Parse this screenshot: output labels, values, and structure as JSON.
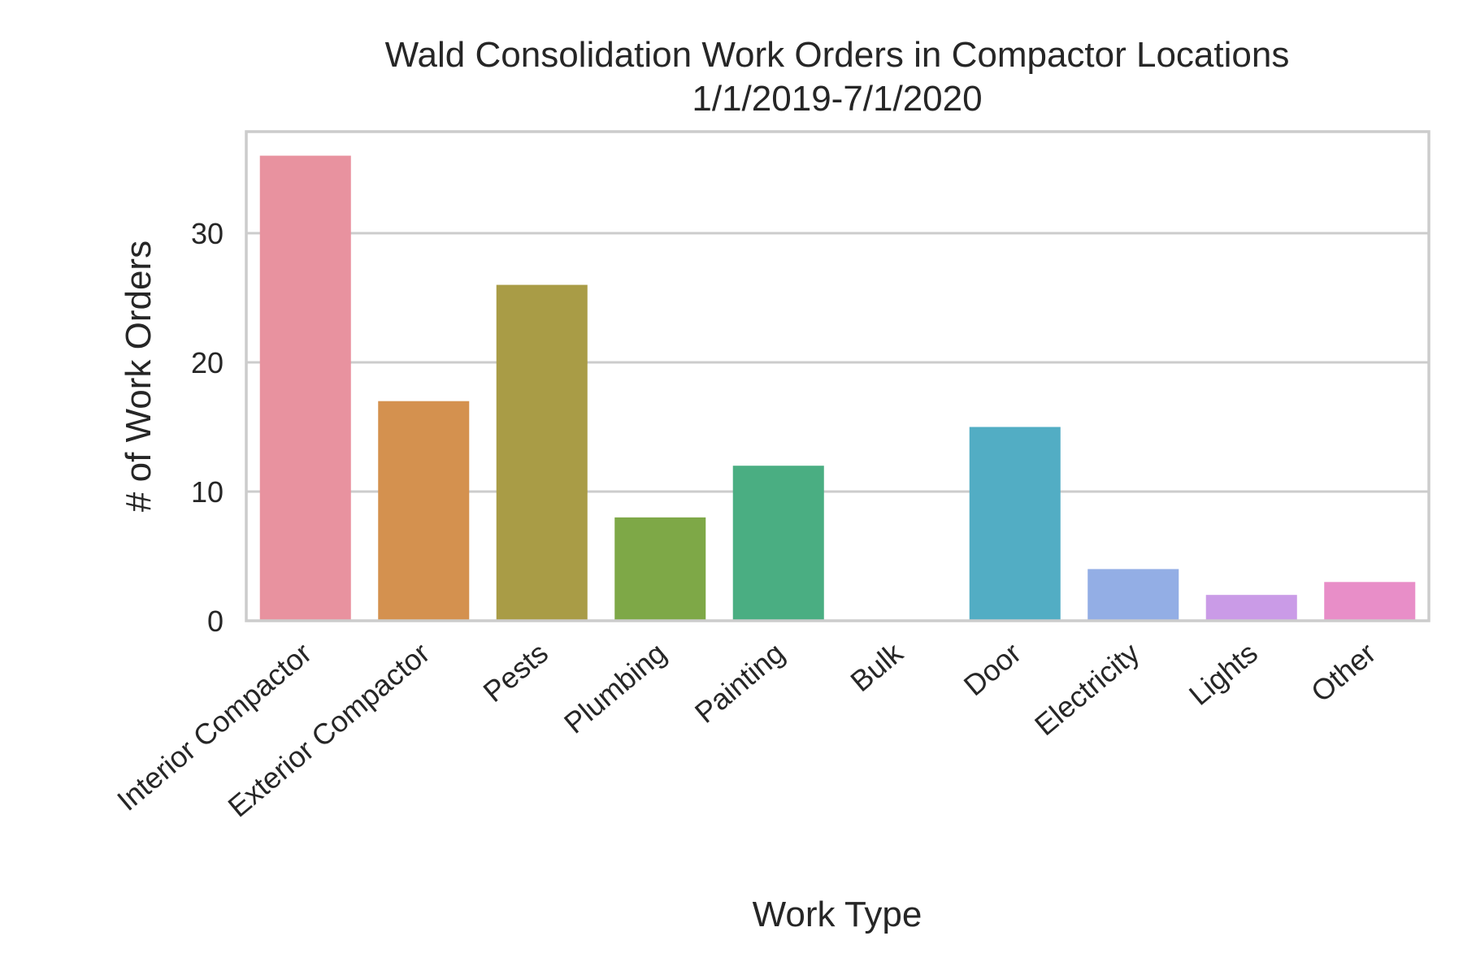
{
  "chart_data": {
    "type": "bar",
    "title_lines": [
      "Wald Consolidation Work Orders in Compactor Locations",
      "1/1/2019-7/1/2020"
    ],
    "xlabel": "Work Type",
    "ylabel": "# of Work Orders",
    "categories": [
      "Interior Compactor",
      "Exterior Compactor",
      "Pests",
      "Plumbing",
      "Painting",
      "Bulk",
      "Door",
      "Electricity",
      "Lights",
      "Other"
    ],
    "values": [
      36,
      17,
      26,
      8,
      12,
      0,
      15,
      4,
      2,
      3
    ],
    "colors": [
      "#e8929f",
      "#d4914f",
      "#a99c46",
      "#7ea847",
      "#4aae82",
      "#4db0a6",
      "#52adc4",
      "#93aee5",
      "#ca9be7",
      "#e88ec8"
    ],
    "yticks": [
      0,
      10,
      20,
      30
    ],
    "ylim": [
      0,
      38
    ],
    "grid": "horizontal"
  }
}
